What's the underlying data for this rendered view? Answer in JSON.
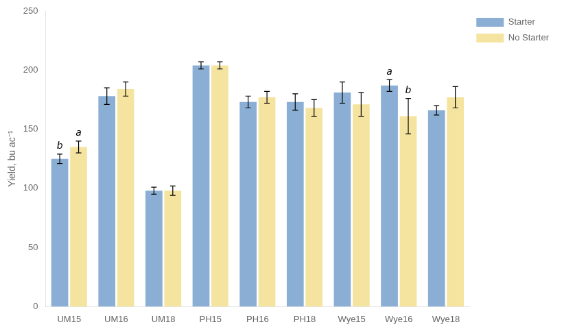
{
  "chart_data": {
    "type": "bar",
    "categories": [
      "UM15",
      "UM16",
      "UM18",
      "PH15",
      "PH16",
      "PH18",
      "Wye15",
      "Wye16",
      "Wye18"
    ],
    "series": [
      {
        "name": "Starter",
        "color": "#8BAFD4",
        "values": [
          125,
          178,
          98,
          204,
          173,
          173,
          181,
          187,
          166
        ],
        "errors": [
          4,
          7,
          3,
          3,
          5,
          7,
          9,
          5,
          4
        ]
      },
      {
        "name": "No Starter",
        "color": "#F5E4A0",
        "values": [
          135,
          184,
          98,
          204,
          177,
          168,
          171,
          161,
          177
        ],
        "errors": [
          5,
          6,
          4,
          3,
          5,
          7,
          10,
          15,
          9
        ]
      }
    ],
    "ylabel": "Yield, bu ac⁻¹",
    "ylim": [
      0,
      250
    ],
    "yticks": [
      0,
      50,
      100,
      150,
      200,
      250
    ],
    "grid": false,
    "legend": "right",
    "annotations": [
      {
        "text": "b",
        "category": "UM15",
        "series": "Starter"
      },
      {
        "text": "a",
        "category": "UM15",
        "series": "No Starter"
      },
      {
        "text": "a",
        "category": "Wye16",
        "series": "Starter"
      },
      {
        "text": "b",
        "category": "Wye16",
        "series": "No Starter"
      }
    ]
  }
}
